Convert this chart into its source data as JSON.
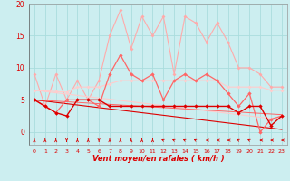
{
  "x": [
    0,
    1,
    2,
    3,
    4,
    5,
    6,
    7,
    8,
    9,
    10,
    11,
    12,
    13,
    14,
    15,
    16,
    17,
    18,
    19,
    20,
    21,
    22,
    23
  ],
  "background_color": "#cceef0",
  "grid_color": "#aadddd",
  "red_dark": "#dd0000",
  "red_mid": "#ff6666",
  "red_light": "#ffaaaa",
  "red_xlight": "#ffcccc",
  "xlabel": "Vent moyen/en rafales ( km/h )",
  "yticks": [
    0,
    5,
    10,
    15,
    20
  ],
  "ylim": [
    0,
    20
  ],
  "series": {
    "s1_light_rafales": [
      9,
      4,
      9,
      5,
      8,
      5,
      8,
      15,
      19,
      13,
      18,
      15,
      18,
      9,
      18,
      17,
      14,
      17,
      14,
      10,
      10,
      9,
      7,
      7
    ],
    "s2_flat_light": [
      6.5,
      6.4,
      6.3,
      6.2,
      7,
      7,
      7,
      7.5,
      8,
      8,
      8,
      8,
      8,
      8,
      8,
      8,
      8,
      8,
      7,
      7,
      7,
      7,
      6.5,
      6.5
    ],
    "s3_trend_light": [
      6.5,
      6.3,
      6.1,
      5.9,
      5.7,
      5.5,
      5.3,
      5.1,
      4.9,
      4.7,
      4.5,
      4.3,
      4.1,
      3.9,
      3.7,
      3.5,
      3.3,
      3.1,
      2.9,
      2.7,
      2.5,
      2.3,
      2.1,
      1.9
    ],
    "s4_dark_rafales": [
      5,
      4,
      3,
      5,
      5,
      5,
      4,
      9,
      12,
      9,
      8,
      9,
      5,
      8,
      9,
      8,
      9,
      8,
      6,
      4,
      6,
      0,
      2,
      2.5
    ],
    "s5_dark_mean": [
      5,
      4,
      3,
      2.5,
      5,
      5,
      5,
      4,
      4,
      4,
      4,
      4,
      4,
      4,
      4,
      4,
      4,
      4,
      4,
      3,
      4,
      4,
      1,
      2.5
    ],
    "s6_trend_dark": [
      5,
      4.8,
      4.6,
      4.4,
      4.2,
      4.0,
      3.8,
      3.6,
      3.4,
      3.2,
      3.0,
      2.8,
      2.6,
      2.4,
      2.2,
      2.0,
      1.8,
      1.6,
      1.4,
      1.2,
      1.0,
      0.8,
      0.6,
      0.4
    ],
    "s7_trend_dark2": [
      5.0,
      4.9,
      4.8,
      4.7,
      4.6,
      4.5,
      4.4,
      4.3,
      4.2,
      4.1,
      4.0,
      3.9,
      3.8,
      3.7,
      3.6,
      3.5,
      3.4,
      3.3,
      3.2,
      3.1,
      3.0,
      2.9,
      2.8,
      2.7
    ]
  },
  "wind_dirs": [
    180,
    180,
    180,
    0,
    180,
    180,
    0,
    180,
    180,
    180,
    180,
    180,
    225,
    225,
    225,
    225,
    270,
    270,
    270,
    225,
    225,
    270,
    270,
    270
  ]
}
